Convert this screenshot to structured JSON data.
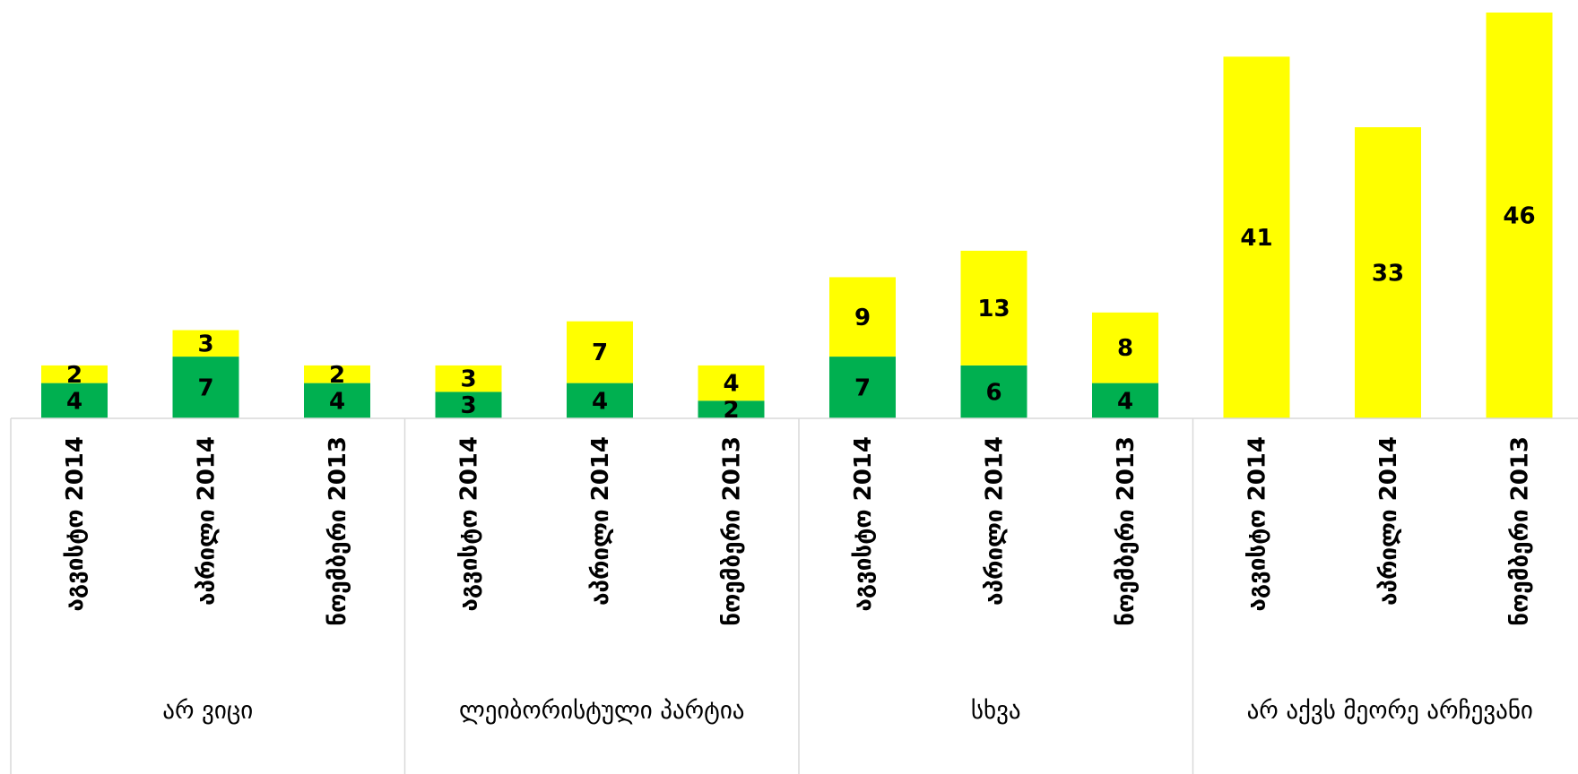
{
  "chart_data": {
    "type": "bar",
    "stacked": true,
    "legend": "none",
    "grid": false,
    "ylim": [
      0,
      46
    ],
    "groups": [
      {
        "label": "არ ვიცი",
        "categories": [
          "აგვისტო 2014",
          "აპრილი 2014",
          "ნოემბერი 2013"
        ]
      },
      {
        "label": "ლეიბორისტული პარტია",
        "categories": [
          "აგვისტო 2014",
          "აპრილი 2014",
          "ნოემბერი 2013"
        ]
      },
      {
        "label": "სხვა",
        "categories": [
          "აგვისტო 2014",
          "აპრილი 2014",
          "ნოემბერი 2013"
        ]
      },
      {
        "label": "არ აქვს მეორე არჩევანი",
        "categories": [
          "აგვისტო 2014",
          "აპრილი 2014",
          "ნოემბერი 2013"
        ]
      }
    ],
    "series": [
      {
        "color": "#00B050",
        "values": [
          4,
          7,
          4,
          3,
          4,
          2,
          7,
          6,
          4,
          0,
          0,
          0
        ]
      },
      {
        "color": "#FFFF00",
        "values": [
          2,
          3,
          2,
          3,
          7,
          4,
          9,
          13,
          8,
          41,
          33,
          46
        ]
      }
    ],
    "data_labels": true
  }
}
